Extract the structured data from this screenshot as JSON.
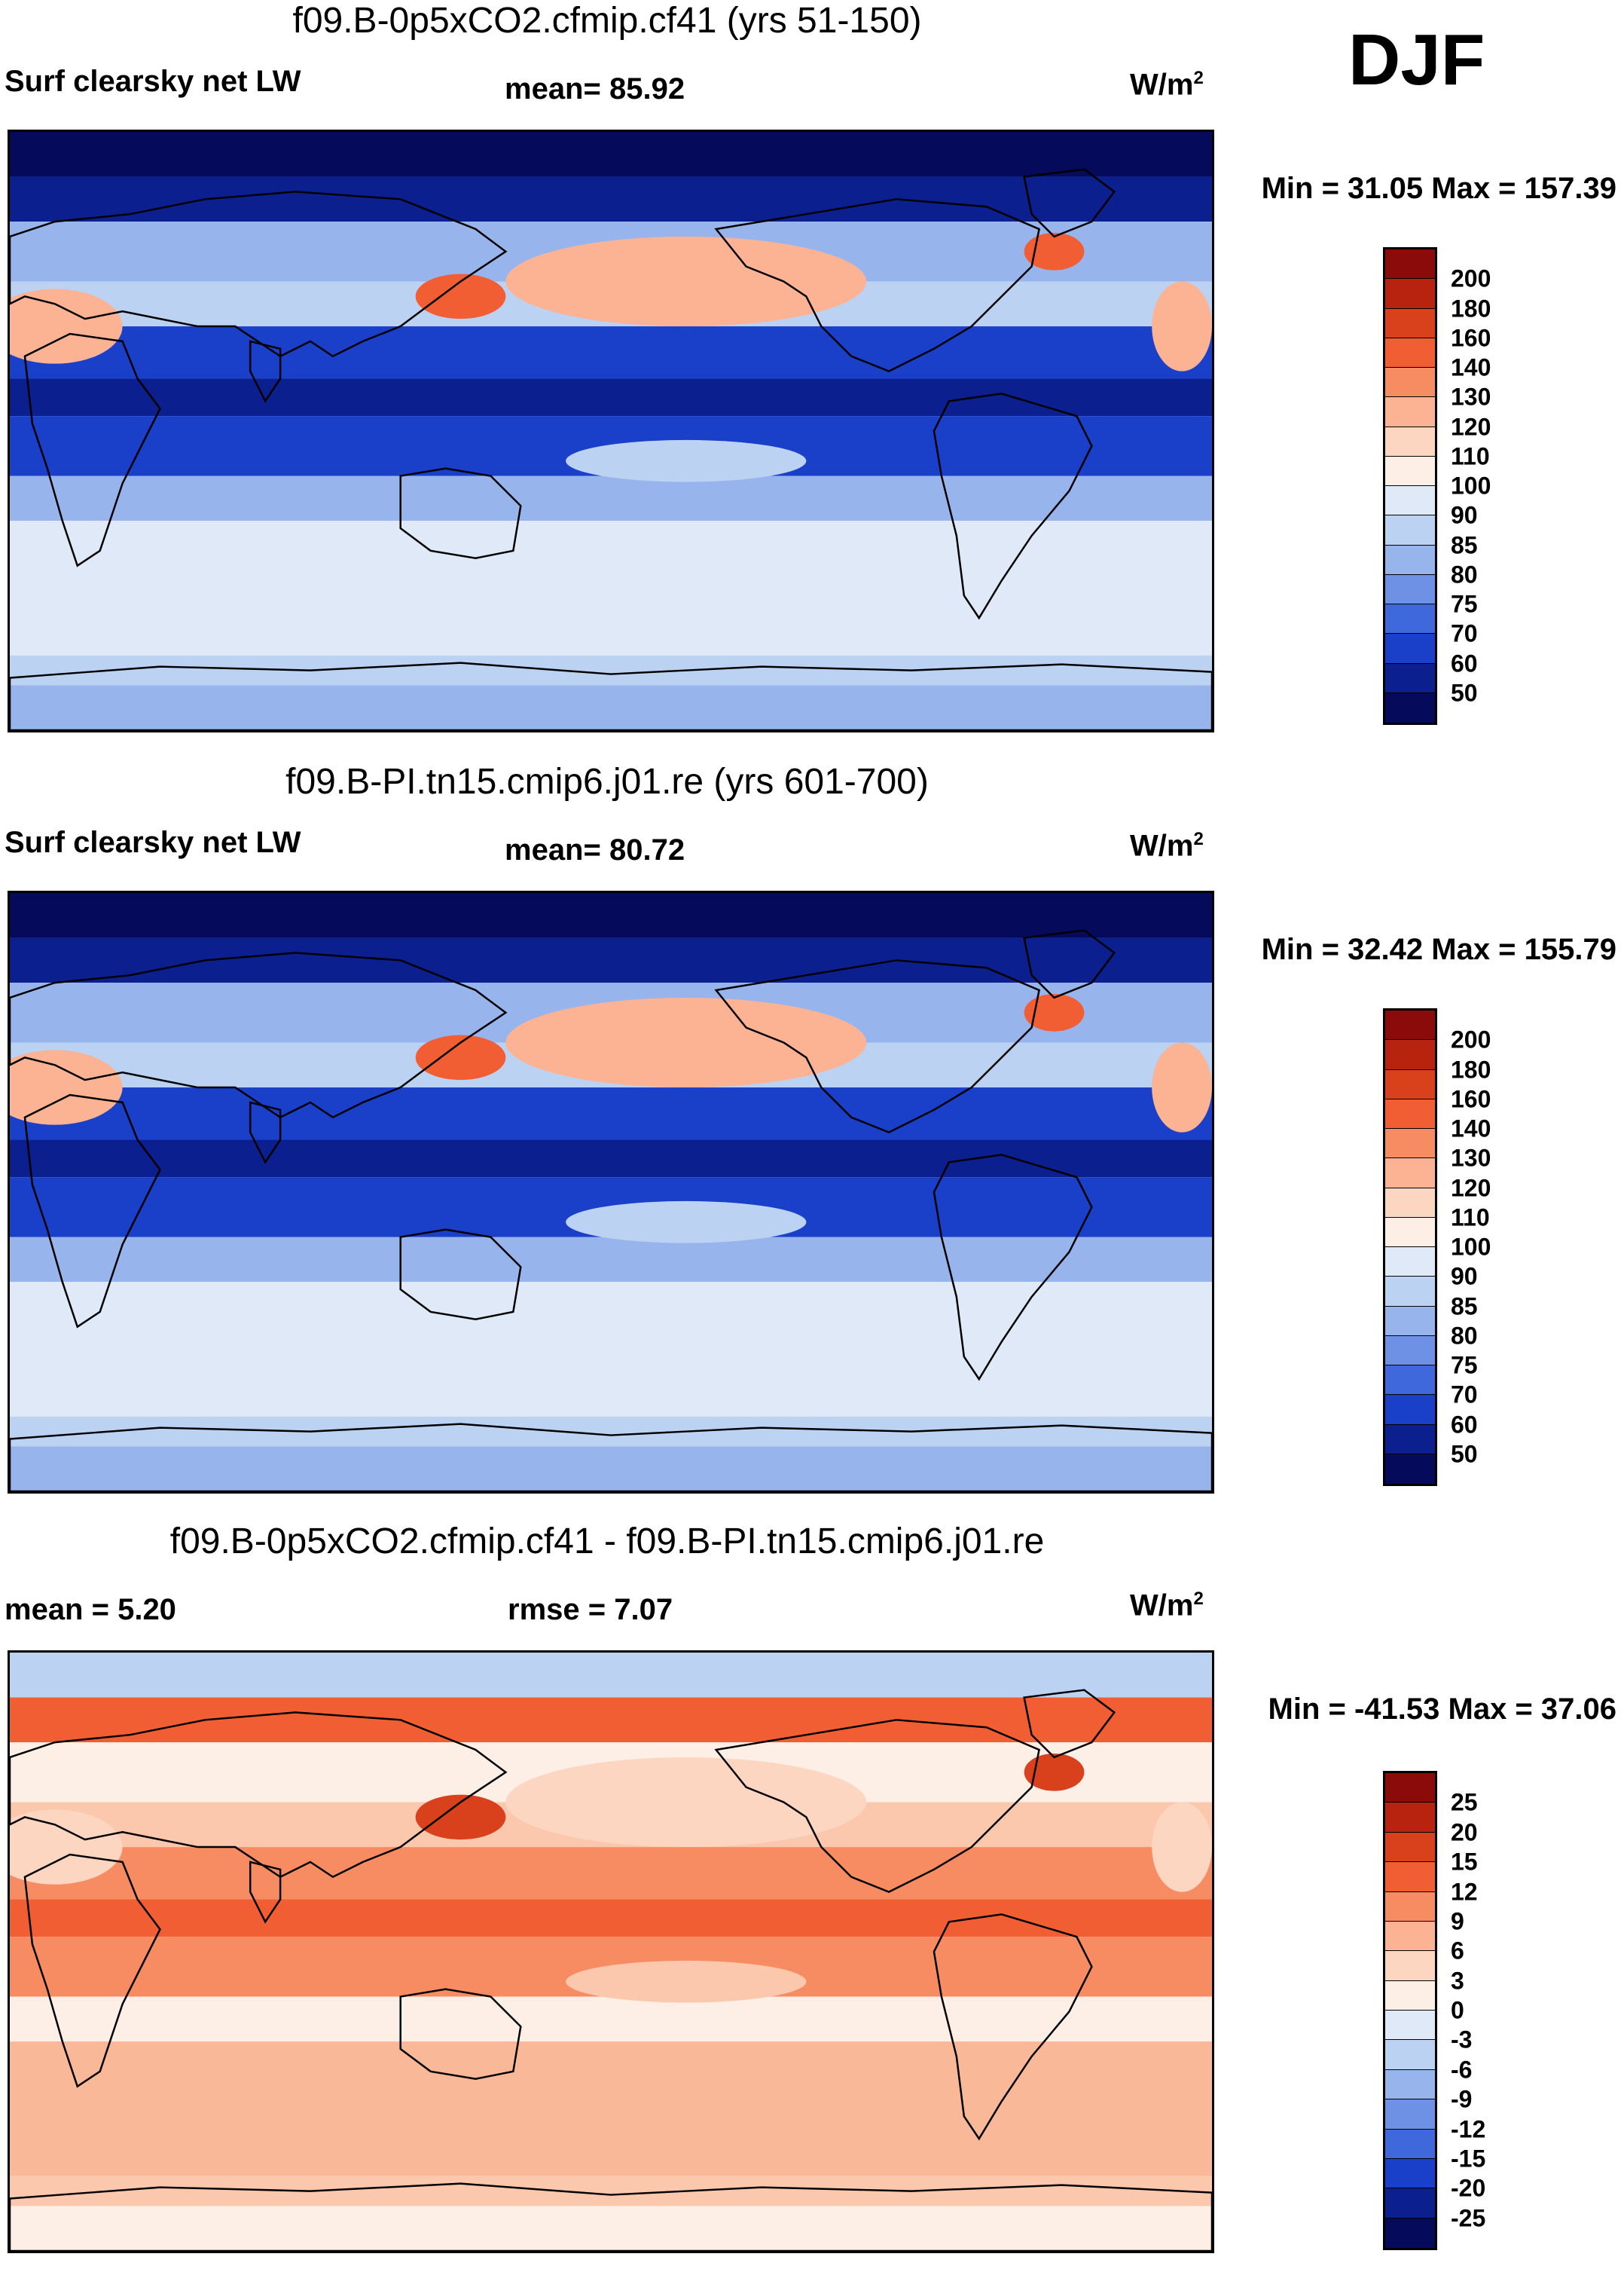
{
  "season": "DJF",
  "panels": [
    {
      "title": "f09.B-0p5xCO2.cfmip.cf41 (yrs 51-150)",
      "variable": "Surf clearsky net LW",
      "stat1": "mean=  85.92",
      "stat2": "",
      "units": "W/m",
      "units_sup": "2",
      "minmax": "Min =  31.05 Max = 157.39",
      "colorbar_levels": [
        "200",
        "180",
        "160",
        "140",
        "130",
        "120",
        "110",
        "100",
        "90",
        "85",
        "80",
        "75",
        "70",
        "60",
        "50"
      ],
      "colorbar_colors": [
        "#8b0a0a",
        "#b8230f",
        "#d9401c",
        "#f15e33",
        "#f78c62",
        "#fbb394",
        "#fdd6c2",
        "#fdeee6",
        "#dfe9f8",
        "#bcd2f2",
        "#97b5ec",
        "#6e91e6",
        "#3f68dd",
        "#1a3fc9",
        "#0c1f8f",
        "#050a5a"
      ],
      "region_colors": {
        "ocean_high": "#dfe9f8",
        "ocean_mid": "#bcd2f2",
        "tropic": "#1a3fc9",
        "deep": "#0c1f8f",
        "arctic": "#050a5a",
        "warm": "#fbb394",
        "hot": "#f15e33",
        "coast": "#97b5ec"
      }
    },
    {
      "title": "f09.B-PI.tn15.cmip6.j01.re (yrs 601-700)",
      "variable": "Surf clearsky net LW",
      "stat1": "mean=  80.72",
      "stat2": "",
      "units": "W/m",
      "units_sup": "2",
      "minmax": "Min =  32.42 Max = 155.79",
      "colorbar_levels": [
        "200",
        "180",
        "160",
        "140",
        "130",
        "120",
        "110",
        "100",
        "90",
        "85",
        "80",
        "75",
        "70",
        "60",
        "50"
      ],
      "colorbar_colors": [
        "#8b0a0a",
        "#b8230f",
        "#d9401c",
        "#f15e33",
        "#f78c62",
        "#fbb394",
        "#fdd6c2",
        "#fdeee6",
        "#dfe9f8",
        "#bcd2f2",
        "#97b5ec",
        "#6e91e6",
        "#3f68dd",
        "#1a3fc9",
        "#0c1f8f",
        "#050a5a"
      ],
      "region_colors": {
        "ocean_high": "#dfe9f8",
        "ocean_mid": "#bcd2f2",
        "tropic": "#1a3fc9",
        "deep": "#0c1f8f",
        "arctic": "#050a5a",
        "warm": "#fbb394",
        "hot": "#f15e33",
        "coast": "#97b5ec"
      }
    },
    {
      "title": "f09.B-0p5xCO2.cfmip.cf41 - f09.B-PI.tn15.cmip6.j01.re",
      "variable": "",
      "stat1": "mean =   5.20",
      "stat2": "rmse =   7.07",
      "units": "W/m",
      "units_sup": "2",
      "minmax": "Min = -41.53 Max =  37.06",
      "colorbar_levels": [
        "25",
        "20",
        "15",
        "12",
        "9",
        "6",
        "3",
        "0",
        "-3",
        "-6",
        "-9",
        "-12",
        "-15",
        "-20",
        "-25"
      ],
      "colorbar_colors": [
        "#8b0a0a",
        "#b8230f",
        "#d9401c",
        "#f15e33",
        "#f78c62",
        "#fbb394",
        "#fdd6c2",
        "#fdeee6",
        "#dfe9f8",
        "#bcd2f2",
        "#97b5ec",
        "#6e91e6",
        "#3f68dd",
        "#1a3fc9",
        "#0c1f8f",
        "#050a5a"
      ],
      "region_colors": {
        "ocean_high": "#f9b897",
        "ocean_mid": "#fbc8ad",
        "tropic": "#f78c62",
        "deep": "#f15e33",
        "arctic": "#bcd2f2",
        "warm": "#fdd6c2",
        "hot": "#d9401c",
        "coast": "#fdeee6"
      }
    }
  ]
}
